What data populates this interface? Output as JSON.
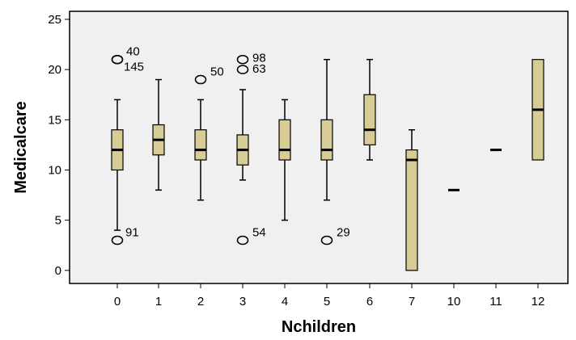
{
  "chart_data": {
    "type": "boxplot",
    "xlabel": "Nchildren",
    "ylabel": "Medicalcare",
    "ylim": [
      -1.3,
      25.8
    ],
    "yticks": [
      0,
      5,
      10,
      15,
      20,
      25
    ],
    "grid": false,
    "categories": [
      "0",
      "1",
      "2",
      "3",
      "4",
      "5",
      "6",
      "7",
      "10",
      "11",
      "12"
    ],
    "boxes": [
      {
        "category": "0",
        "whisker_low": 4,
        "q1": 10,
        "median": 12,
        "q3": 14,
        "whisker_high": 17
      },
      {
        "category": "1",
        "whisker_low": 8,
        "q1": 11.5,
        "median": 13,
        "q3": 14.5,
        "whisker_high": 19
      },
      {
        "category": "2",
        "whisker_low": 7,
        "q1": 11,
        "median": 12,
        "q3": 14,
        "whisker_high": 17
      },
      {
        "category": "3",
        "whisker_low": 9,
        "q1": 10.5,
        "median": 12,
        "q3": 13.5,
        "whisker_high": 18
      },
      {
        "category": "4",
        "whisker_low": 5,
        "q1": 11,
        "median": 12,
        "q3": 15,
        "whisker_high": 17
      },
      {
        "category": "5",
        "whisker_low": 7,
        "q1": 11,
        "median": 12,
        "q3": 15,
        "whisker_high": 21
      },
      {
        "category": "6",
        "whisker_low": 11,
        "q1": 12.5,
        "median": 14,
        "q3": 17.5,
        "whisker_high": 21
      },
      {
        "category": "7",
        "whisker_low": 0,
        "q1": 0,
        "median": 11,
        "q3": 12,
        "whisker_high": 14
      },
      {
        "category": "10",
        "whisker_low": 8,
        "q1": 8,
        "median": 8,
        "q3": 8,
        "whisker_high": 8
      },
      {
        "category": "11",
        "whisker_low": 12,
        "q1": 12,
        "median": 12,
        "q3": 12,
        "whisker_high": 12
      },
      {
        "category": "12",
        "whisker_low": 11,
        "q1": 11,
        "median": 16,
        "q3": 21,
        "whisker_high": 21
      }
    ],
    "outliers": [
      {
        "category": "0",
        "value": 21,
        "label": "40"
      },
      {
        "category": "0",
        "value": 21,
        "label": "145"
      },
      {
        "category": "0",
        "value": 3,
        "label": "91"
      },
      {
        "category": "2",
        "value": 19,
        "label": "50"
      },
      {
        "category": "3",
        "value": 21,
        "label": "98"
      },
      {
        "category": "3",
        "value": 20,
        "label": "63"
      },
      {
        "category": "3",
        "value": 3,
        "label": "54"
      },
      {
        "category": "5",
        "value": 3,
        "label": "29"
      }
    ],
    "colors": {
      "box_fill": "#d7cc95",
      "plot_background": "#f0f0f0",
      "stroke": "#000000"
    }
  }
}
